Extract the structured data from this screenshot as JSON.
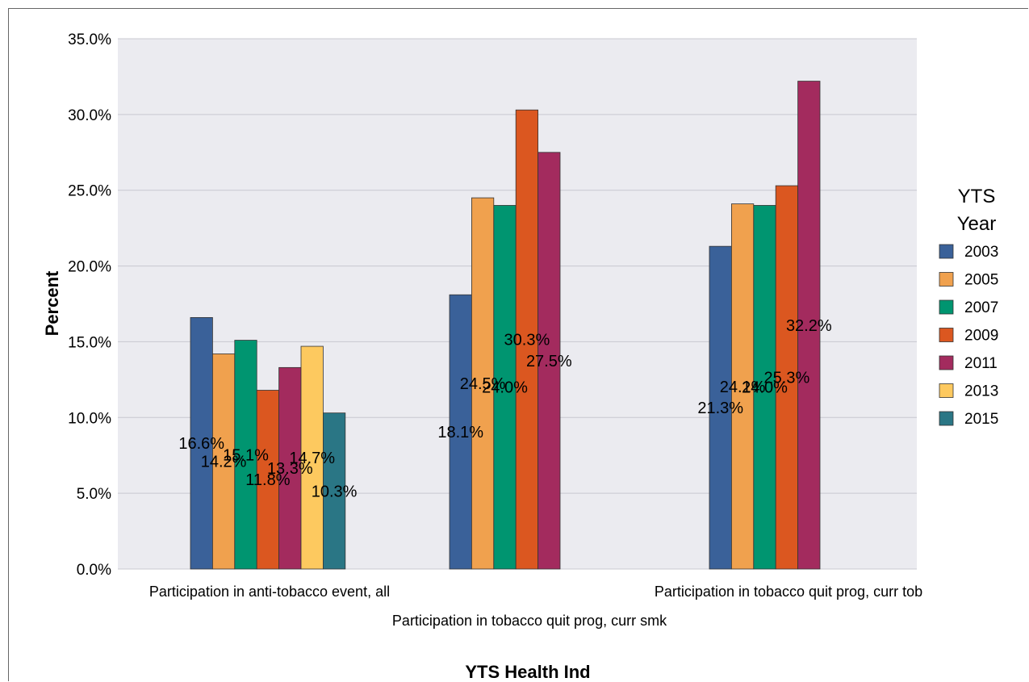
{
  "chart_data": {
    "type": "bar",
    "title": "",
    "xlabel": "YTS Health Ind",
    "ylabel": "Percent",
    "ylim": [
      0,
      35
    ],
    "yticks": [
      0,
      5,
      10,
      15,
      20,
      25,
      30,
      35
    ],
    "ytick_labels": [
      "0.0%",
      "5.0%",
      "10.0%",
      "15.0%",
      "20.0%",
      "25.0%",
      "30.0%",
      "35.0%"
    ],
    "grid": "horizontal",
    "legend_title": "YTS Year",
    "legend_position": "right",
    "categories": [
      "Participation in anti-tobacco event, all",
      "Participation in tobacco quit prog, curr smk",
      "Participation in tobacco quit prog, curr tob"
    ],
    "series": [
      {
        "name": "2003",
        "color": "#3a6199",
        "values": [
          16.6,
          18.1,
          21.3
        ],
        "labels": [
          "16.6%",
          "18.1%",
          "21.3%"
        ]
      },
      {
        "name": "2005",
        "color": "#f0a14e",
        "values": [
          14.2,
          24.5,
          24.1
        ],
        "labels": [
          "14.2%",
          "24.5%",
          "24.1%"
        ]
      },
      {
        "name": "2007",
        "color": "#009570",
        "values": [
          15.1,
          24.0,
          24.0
        ],
        "labels": [
          "15.1%",
          "24.0%",
          "24.0%"
        ]
      },
      {
        "name": "2009",
        "color": "#db5720",
        "values": [
          11.8,
          30.3,
          25.3
        ],
        "labels": [
          "11.8%",
          "30.3%",
          "25.3%"
        ]
      },
      {
        "name": "2011",
        "color": "#a32b5e",
        "values": [
          13.3,
          27.5,
          32.2
        ],
        "labels": [
          "13.3%",
          "27.5%",
          "32.2%"
        ]
      },
      {
        "name": "2013",
        "color": "#fdc95f",
        "values": [
          14.7,
          null,
          null
        ],
        "labels": [
          "14.7%",
          "",
          ""
        ]
      },
      {
        "name": "2015",
        "color": "#2a7685",
        "values": [
          10.3,
          null,
          null
        ],
        "labels": [
          "10.3%",
          "",
          ""
        ]
      }
    ]
  }
}
